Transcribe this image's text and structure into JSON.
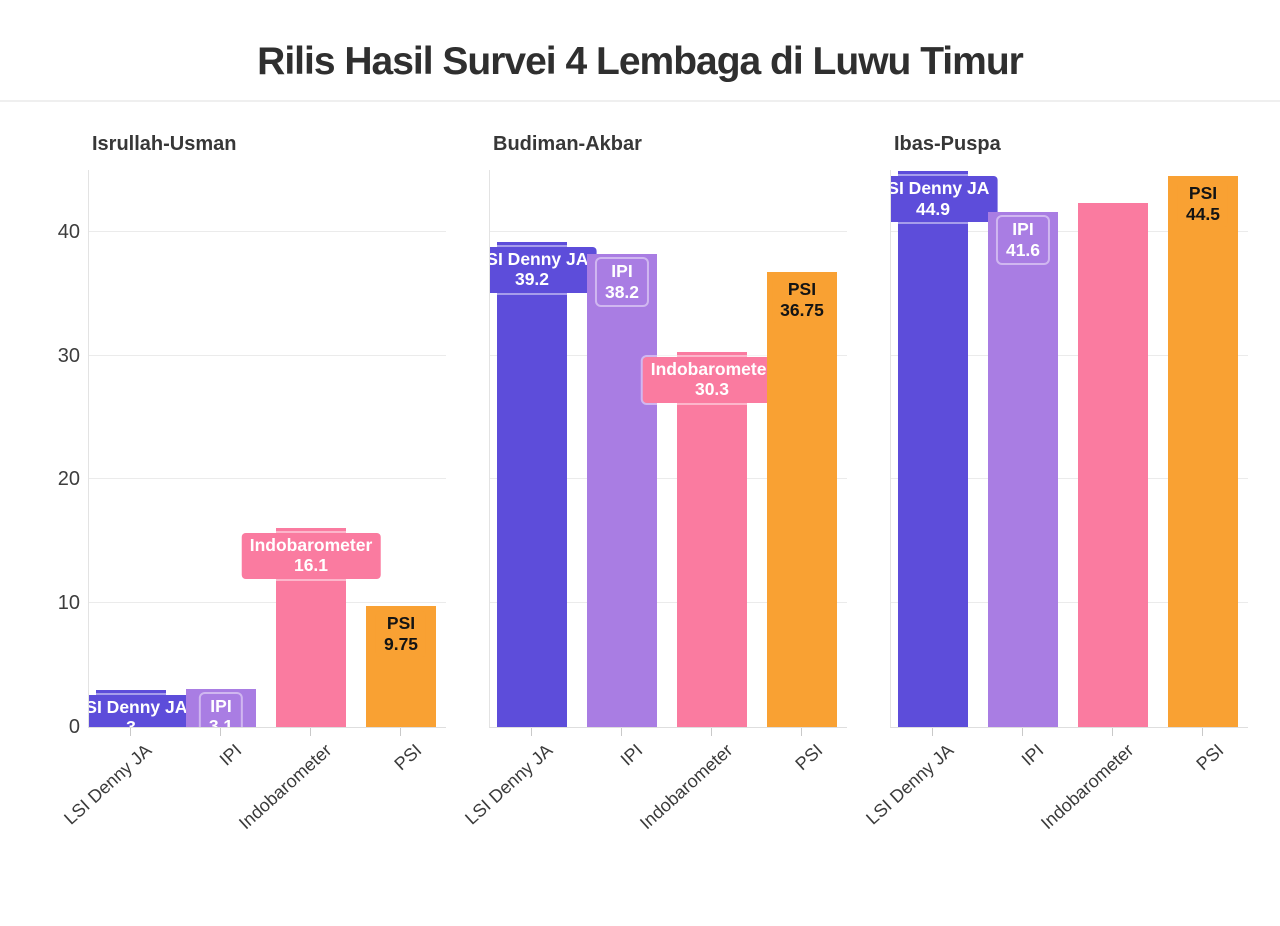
{
  "header": {
    "title": "Rilis Hasil Survei 4 Lembaga di Luwu Timur"
  },
  "chart_data": {
    "type": "bar",
    "title": "Rilis Hasil Survei 4 Lembaga di Luwu Timur",
    "categories": [
      "LSI Denny JA",
      "IPI",
      "Indobarometer",
      "PSI"
    ],
    "bar_colors": [
      "#5D4DDA",
      "#A97DE3",
      "#FA7BA0",
      "#F9A133"
    ],
    "label_text_colors": [
      "#FFFFFF",
      "#FFFFFF",
      "#FFFFFF",
      "#1B1B1B"
    ],
    "ylim": [
      0,
      45
    ],
    "yticks": [
      0,
      10,
      20,
      30,
      40
    ],
    "grid": "horizontal",
    "legend": "none",
    "panels": [
      {
        "title": "Isrullah-Usman",
        "values": [
          3,
          3.1,
          16.1,
          9.75
        ],
        "value_labels": [
          "3",
          "3.1",
          "16.1",
          "9.75"
        ]
      },
      {
        "title": "Budiman-Akbar",
        "values": [
          39.2,
          38.2,
          30.3,
          36.75
        ],
        "value_labels": [
          "39.2",
          "38.2",
          "30.3",
          "36.75"
        ]
      },
      {
        "title": "Ibas-Puspa",
        "values": [
          44.9,
          41.6,
          42.3,
          44.5
        ],
        "value_labels": [
          "44.9",
          "41.6",
          null,
          "44.5"
        ]
      }
    ]
  }
}
